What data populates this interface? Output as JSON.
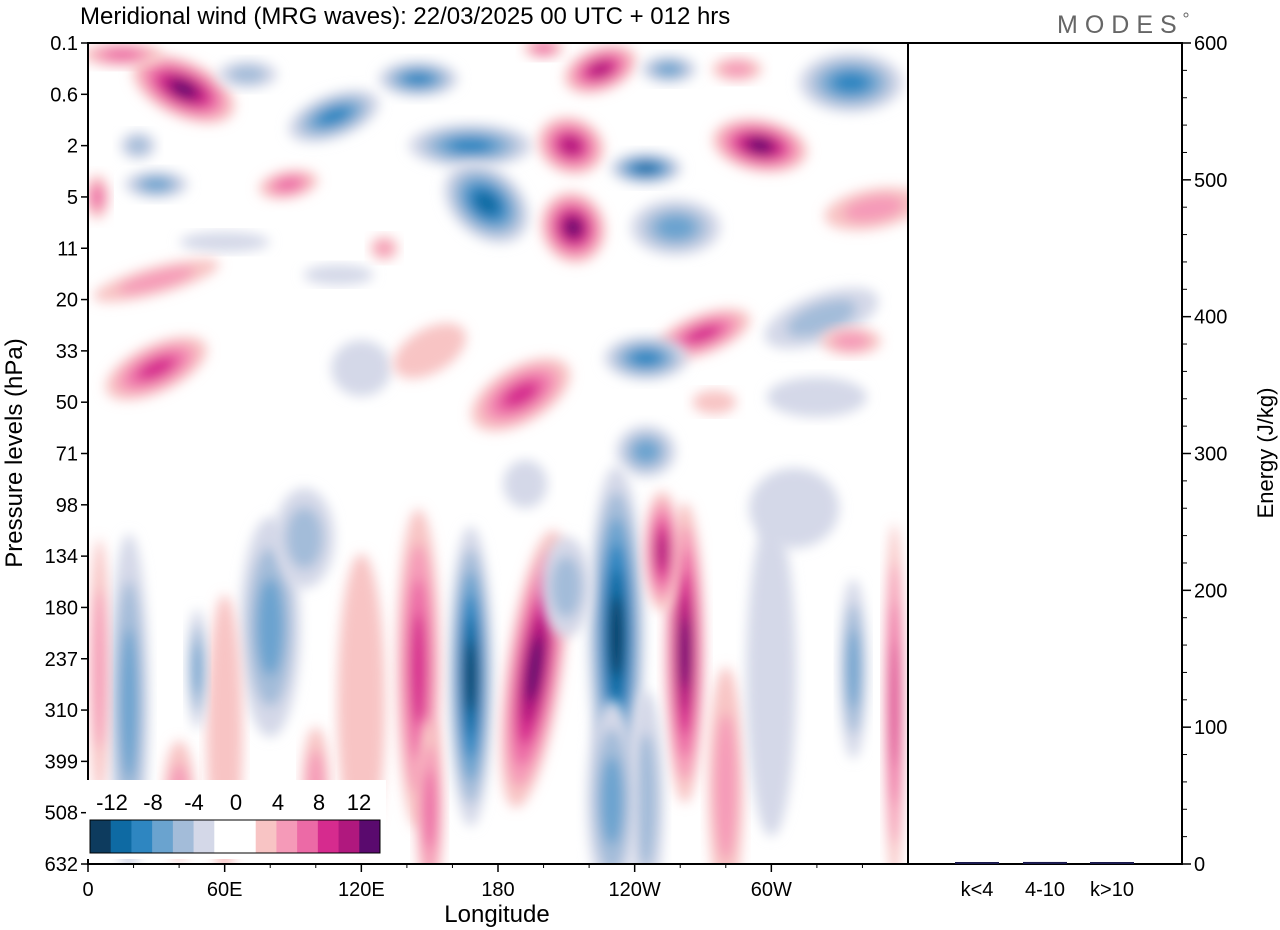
{
  "title": "Meridional wind (MRG waves):  22/03/2025  00 UTC  + 012 hrs",
  "brand": "MODES",
  "chart_data": [
    {
      "type": "heatmap",
      "title": "Meridional wind (MRG waves):  22/03/2025  00 UTC  + 012 hrs",
      "xlabel": "Longitude",
      "ylabel": "Pressure levels (hPa)",
      "x_ticks": [
        "0",
        "60E",
        "120E",
        "180",
        "120W",
        "60W"
      ],
      "x_tick_degrees": [
        0,
        60,
        120,
        180,
        240,
        300
      ],
      "x_range_degrees": [
        0,
        360
      ],
      "y_ticks": [
        "0.1",
        "0.6",
        "2",
        "5",
        "11",
        "20",
        "33",
        "50",
        "71",
        "98",
        "134",
        "180",
        "237",
        "310",
        "399",
        "508",
        "632"
      ],
      "grid": false,
      "colorbar": {
        "labels": [
          "-12",
          "-8",
          "-4",
          "0",
          "4",
          "8",
          "12"
        ],
        "values": [
          -12,
          -8,
          -4,
          0,
          4,
          8,
          12
        ],
        "colors": [
          "#0d3b5e",
          "#0e6aa3",
          "#2e86c1",
          "#6aa3cf",
          "#a3bcd9",
          "#d4d8e8",
          "#ffffff",
          "#ffffff",
          "#f8c4c4",
          "#f59ab8",
          "#ec6aa6",
          "#d62b8e",
          "#b0187e",
          "#5a0a6e"
        ],
        "placement": "bottom-left"
      },
      "features": [
        {
          "sign": "negative",
          "longitude": 168,
          "pressure_top": 134,
          "pressure_bottom": 399,
          "peak": -12
        },
        {
          "sign": "positive",
          "longitude": 196,
          "pressure_top": 134,
          "pressure_bottom": 399,
          "peak": 12
        },
        {
          "sign": "negative",
          "longitude": 232,
          "pressure_top": 98,
          "pressure_bottom": 399,
          "peak": -12
        },
        {
          "sign": "positive",
          "longitude": 263,
          "pressure_top": 98,
          "pressure_bottom": 399,
          "peak": 10
        },
        {
          "sign": "positive",
          "longitude": 42,
          "pressure_top": 0.1,
          "pressure_bottom": 2,
          "peak": 12
        },
        {
          "sign": "positive",
          "longitude": 297,
          "pressure_top": 0.6,
          "pressure_bottom": 5,
          "peak": 12
        }
      ]
    },
    {
      "type": "bar",
      "categories": [
        "k<4",
        "4-10",
        "k>10"
      ],
      "values": [
        0.5,
        1.5,
        0.3
      ],
      "ylabel": "Energy (J/kg)",
      "ylim": [
        0,
        600
      ],
      "y_ticks": [
        "0",
        "100",
        "200",
        "300",
        "400",
        "500",
        "600"
      ],
      "colors": [
        "#1a1a4e",
        "#1a1a4e",
        "#1a1a4e"
      ]
    }
  ]
}
